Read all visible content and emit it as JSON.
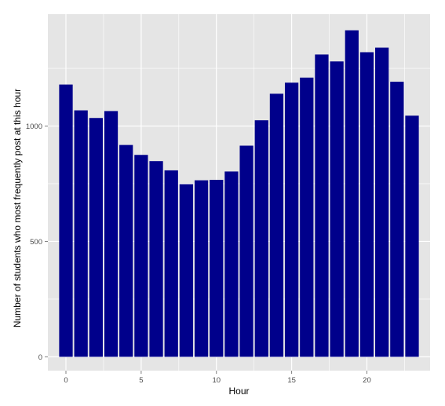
{
  "chart_data": {
    "type": "bar",
    "title": "",
    "xlabel": "Hour",
    "ylabel": "Number of students who most frequently post at this hour",
    "x": [
      0,
      1,
      2,
      3,
      4,
      5,
      6,
      7,
      8,
      9,
      10,
      11,
      12,
      13,
      14,
      15,
      16,
      17,
      18,
      19,
      20,
      21,
      22,
      23
    ],
    "values": [
      1180,
      1068,
      1035,
      1065,
      918,
      875,
      848,
      808,
      748,
      765,
      767,
      803,
      915,
      1025,
      1140,
      1188,
      1210,
      1310,
      1280,
      1415,
      1320,
      1340,
      1192,
      1045
    ],
    "xlim": [
      -1.2,
      24.2
    ],
    "ylim": [
      -60,
      1485
    ],
    "x_ticks": [
      0,
      5,
      10,
      15,
      20
    ],
    "x_tick_labels": [
      "0",
      "5",
      "10",
      "15",
      "20"
    ],
    "y_ticks": [
      0,
      500,
      1000
    ],
    "y_tick_labels": [
      "0",
      "500",
      "1000"
    ],
    "grid": true,
    "bar_color": "#00008B",
    "panel_background": "#E5E5E5",
    "grid_color": "#FFFFFF"
  }
}
